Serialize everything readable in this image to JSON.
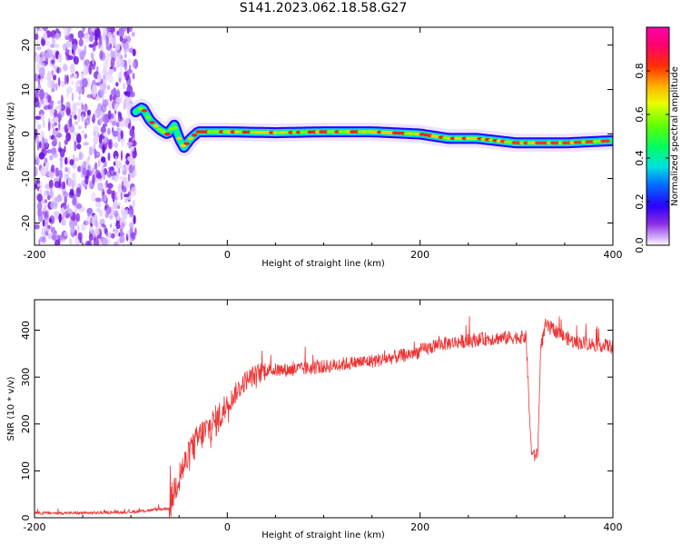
{
  "title": "S141.2023.062.18.58.G27",
  "chart_data": [
    {
      "type": "heatmap",
      "xlabel": "Height of straight line (km)",
      "ylabel": "Frequency (Hz)",
      "xlim": [
        -200,
        400
      ],
      "ylim": [
        -25,
        24
      ],
      "x_ticks": [
        -200,
        0,
        200,
        400
      ],
      "y_ticks": [
        -20,
        -10,
        0,
        10,
        20
      ],
      "colorbar": {
        "label": "Normalized spectral amplitude",
        "range": [
          0,
          1
        ],
        "ticks": [
          0.0,
          0.2,
          0.4,
          0.6,
          0.8
        ],
        "tick_labels": [
          "0.0",
          "0.2",
          "0.4",
          "0.6",
          "0.8"
        ]
      },
      "noise_region_x": [
        -200,
        -95
      ],
      "ridge": [
        {
          "x": -95,
          "y": 5
        },
        {
          "x": -88,
          "y": 6
        },
        {
          "x": -80,
          "y": 3
        },
        {
          "x": -70,
          "y": 1
        },
        {
          "x": -62,
          "y": 0
        },
        {
          "x": -55,
          "y": 2
        },
        {
          "x": -50,
          "y": -1
        },
        {
          "x": -45,
          "y": -3
        },
        {
          "x": -38,
          "y": -1
        },
        {
          "x": -30,
          "y": 0.5
        },
        {
          "x": 0,
          "y": 0.5
        },
        {
          "x": 50,
          "y": 0.3
        },
        {
          "x": 100,
          "y": 0.5
        },
        {
          "x": 150,
          "y": 0.5
        },
        {
          "x": 200,
          "y": 0
        },
        {
          "x": 230,
          "y": -1
        },
        {
          "x": 260,
          "y": -1
        },
        {
          "x": 300,
          "y": -2
        },
        {
          "x": 350,
          "y": -2
        },
        {
          "x": 400,
          "y": -1.5
        }
      ]
    },
    {
      "type": "line",
      "xlabel": "Height of straight line (km)",
      "ylabel": "SNR (10 * v/v)",
      "xlim": [
        -200,
        400
      ],
      "ylim": [
        0,
        465
      ],
      "x_ticks": [
        -200,
        0,
        200,
        400
      ],
      "y_ticks": [
        0,
        100,
        200,
        300,
        400
      ],
      "color": "#ee3333",
      "series": [
        {
          "x": [
            -200,
            -150,
            -100,
            -60,
            -55,
            -50,
            -45,
            -40,
            -35,
            -30,
            -25,
            -20,
            -15,
            -10,
            0,
            10,
            20,
            30,
            40,
            60,
            80,
            100,
            120,
            140,
            160,
            180,
            200,
            220,
            240,
            260,
            280,
            300,
            310,
            315,
            318,
            322,
            325,
            330,
            340,
            350,
            360,
            380,
            400
          ],
          "values": [
            10,
            10,
            12,
            20,
            60,
            90,
            110,
            130,
            150,
            170,
            180,
            190,
            200,
            210,
            240,
            270,
            295,
            305,
            315,
            315,
            318,
            322,
            328,
            332,
            337,
            345,
            355,
            370,
            375,
            380,
            383,
            385,
            385,
            150,
            130,
            140,
            360,
            410,
            400,
            385,
            375,
            370,
            365
          ]
        }
      ]
    }
  ]
}
